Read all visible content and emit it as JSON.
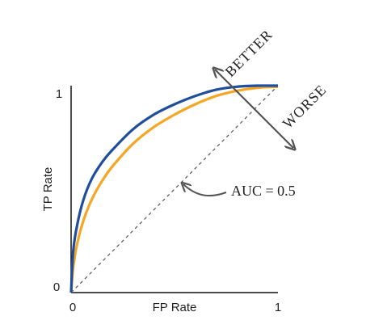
{
  "chart_data": {
    "type": "line",
    "title": "",
    "xlabel": "FP Rate",
    "ylabel": "TP Rate",
    "xlim": [
      0,
      1
    ],
    "ylim": [
      0,
      1
    ],
    "x_ticks": [
      "0",
      "1"
    ],
    "y_ticks": [
      "0",
      "1"
    ],
    "grid": false,
    "series": [
      {
        "color": "#1f4e9c",
        "x": [
          0,
          0.01,
          0.03,
          0.06,
          0.1,
          0.15,
          0.2,
          0.3,
          0.4,
          0.5,
          0.6,
          0.7,
          0.8,
          0.9,
          1.0
        ],
        "y": [
          0,
          0.2,
          0.33,
          0.45,
          0.55,
          0.63,
          0.69,
          0.79,
          0.86,
          0.91,
          0.95,
          0.98,
          0.995,
          1.0,
          1.0
        ]
      },
      {
        "color": "#f5a623",
        "x": [
          0,
          0.01,
          0.03,
          0.06,
          0.1,
          0.15,
          0.2,
          0.3,
          0.4,
          0.5,
          0.6,
          0.7,
          0.8,
          0.9,
          1.0
        ],
        "y": [
          0,
          0.12,
          0.24,
          0.35,
          0.45,
          0.54,
          0.61,
          0.72,
          0.8,
          0.86,
          0.91,
          0.95,
          0.975,
          0.99,
          0.995
        ]
      },
      {
        "color": "#555555",
        "style": "dashed",
        "x": [
          0,
          1
        ],
        "y": [
          0,
          1
        ]
      }
    ],
    "annotations": [
      {
        "text": "BETTER"
      },
      {
        "text": "WORSE"
      },
      {
        "text": "AUC = 0.5"
      }
    ]
  }
}
